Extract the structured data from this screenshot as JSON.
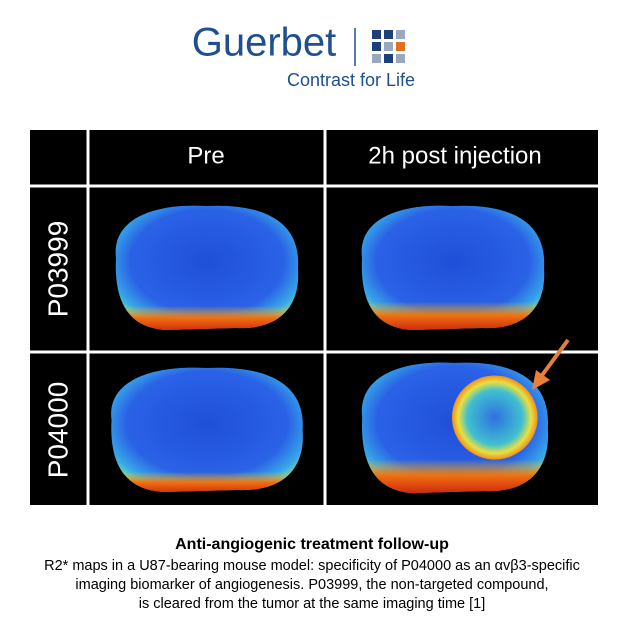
{
  "logo": {
    "brand": "Guerbet",
    "tagline": "Contrast for Life"
  },
  "figure": {
    "columns": [
      "Pre",
      "2h post injection"
    ],
    "rows": [
      "P03999",
      "P04000"
    ]
  },
  "caption": {
    "title": "Anti-angiogenic treatment follow-up",
    "lines": [
      "R2* maps in a U87-bearing mouse model: specificity of P04000 as an αvβ3-specific",
      "imaging biomarker of angiogenesis. P03999, the non-targeted compound,",
      "is cleared from the tumor at the same imaging time [1]"
    ]
  }
}
